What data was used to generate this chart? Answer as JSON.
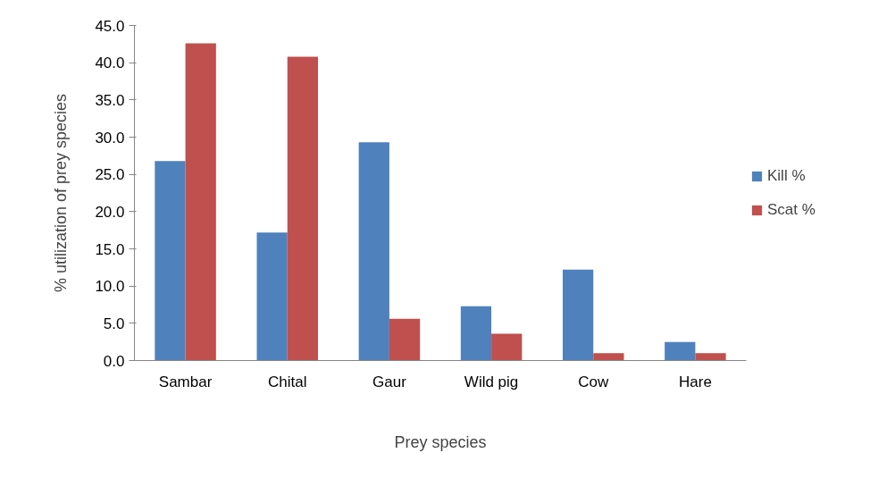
{
  "chart_data": {
    "type": "bar",
    "xlabel": "Prey species",
    "ylabel": "% utilization of prey species",
    "categories": [
      "Sambar",
      "Chital",
      "Gaur",
      "Wild pig",
      "Cow",
      "Hare"
    ],
    "series": [
      {
        "name": "Kill %",
        "color": "#4f81bd",
        "values": [
          26.8,
          17.2,
          29.3,
          7.3,
          12.2,
          2.5
        ]
      },
      {
        "name": "Scat %",
        "color": "#c0504d",
        "values": [
          42.6,
          40.8,
          5.6,
          3.6,
          1.0,
          1.0
        ]
      }
    ],
    "ylim": [
      0,
      45
    ],
    "yticks": [
      {
        "value": 0,
        "label": "0.0"
      },
      {
        "value": 5,
        "label": "5.0"
      },
      {
        "value": 10,
        "label": "10.0"
      },
      {
        "value": 15,
        "label": "15.0"
      },
      {
        "value": 20,
        "label": "20.0"
      },
      {
        "value": 25,
        "label": "25.0"
      },
      {
        "value": 30,
        "label": "30.0"
      },
      {
        "value": 35,
        "label": "35.0"
      },
      {
        "value": 40,
        "label": "40.0"
      },
      {
        "value": 45,
        "label": "45.0"
      }
    ],
    "grid": false,
    "legend": "right"
  }
}
